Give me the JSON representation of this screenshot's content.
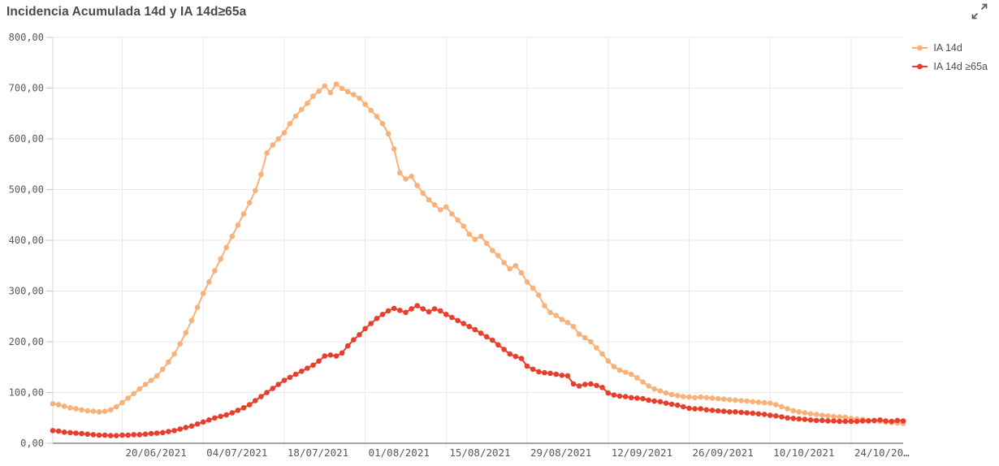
{
  "header": {
    "title": "Incidencia Acumulada 14d y IA 14d≥65a"
  },
  "icons": {
    "expand_icon": "expand-fullscreen",
    "expand_color": "#595959"
  },
  "legend": {
    "items": [
      {
        "label": "IA 14d",
        "color": "#F8B179"
      },
      {
        "label": "IA 14d ≥65a",
        "color": "#E83E2C"
      }
    ]
  },
  "chart_data": {
    "type": "line",
    "title": "Incidencia Acumulada 14d y IA 14d≥65a",
    "xlabel": "",
    "ylabel": "",
    "ylim": [
      0,
      800
    ],
    "grid": true,
    "legend_position": "top-right",
    "marker": "dot",
    "y_tick_labels": [
      "0,00",
      "100,00",
      "200,00",
      "300,00",
      "400,00",
      "500,00",
      "600,00",
      "700,00",
      "800,00"
    ],
    "x_start_date": "08/06/2021",
    "x_end_date": "02/11/2021",
    "x_tick_labels": [
      "20/06/2021",
      "04/07/2021",
      "18/07/2021",
      "01/08/2021",
      "15/08/2021",
      "29/08/2021",
      "12/09/2021",
      "26/09/2021",
      "10/10/2021",
      "24/10/20…"
    ],
    "x_tick_indices": [
      12,
      26,
      40,
      54,
      68,
      82,
      96,
      110,
      124,
      138
    ],
    "colors": {
      "gridline": "#e9e9e9",
      "axis_line": "#a6a6a6",
      "plot_border": "#d4d4d4",
      "tick": "#c4c4c4"
    },
    "series": [
      {
        "name": "IA 14d",
        "color": "#F8B179",
        "values": [
          78,
          76,
          73,
          70,
          68,
          66,
          64,
          63,
          62,
          63,
          66,
          72,
          80,
          89,
          98,
          107,
          116,
          124,
          133,
          146,
          160,
          176,
          196,
          218,
          242,
          268,
          295,
          318,
          340,
          363,
          386,
          408,
          430,
          452,
          474,
          498,
          530,
          572,
          588,
          600,
          612,
          630,
          645,
          658,
          670,
          684,
          694,
          704,
          691,
          708,
          699,
          693,
          687,
          680,
          668,
          656,
          644,
          630,
          610,
          580,
          533,
          521,
          526,
          508,
          493,
          480,
          470,
          460,
          466,
          452,
          440,
          428,
          412,
          402,
          408,
          394,
          380,
          370,
          356,
          344,
          350,
          336,
          318,
          306,
          292,
          271,
          258,
          252,
          244,
          238,
          230,
          215,
          208,
          200,
          188,
          176,
          162,
          151,
          144,
          140,
          136,
          129,
          121,
          113,
          107,
          103,
          99,
          96,
          94,
          92,
          91,
          90,
          91,
          90,
          89,
          88,
          87,
          86,
          85,
          84,
          83,
          82,
          81,
          80,
          79,
          76,
          72,
          68,
          64,
          62,
          60,
          58,
          57,
          55,
          54,
          53,
          52,
          51,
          49,
          48,
          47,
          45,
          44,
          43,
          42,
          41,
          40,
          39
        ]
      },
      {
        "name": "IA 14d ≥65a",
        "color": "#E83E2C",
        "values": [
          25,
          24,
          22,
          21,
          20,
          19,
          18,
          17,
          16,
          16,
          15,
          15,
          16,
          16,
          17,
          17,
          18,
          19,
          20,
          21,
          23,
          25,
          28,
          31,
          34,
          38,
          42,
          46,
          50,
          53,
          56,
          60,
          65,
          70,
          76,
          84,
          92,
          100,
          108,
          116,
          124,
          130,
          136,
          142,
          148,
          154,
          162,
          172,
          174,
          172,
          178,
          192,
          204,
          214,
          226,
          236,
          246,
          254,
          261,
          266,
          262,
          258,
          265,
          271,
          265,
          259,
          265,
          261,
          254,
          248,
          242,
          236,
          230,
          224,
          217,
          210,
          203,
          194,
          185,
          176,
          171,
          167,
          152,
          146,
          141,
          139,
          138,
          136,
          134,
          133,
          117,
          113,
          116,
          117,
          114,
          110,
          99,
          95,
          93,
          92,
          90,
          89,
          88,
          85,
          83,
          82,
          79,
          77,
          75,
          72,
          69,
          68,
          68,
          66,
          65,
          64,
          63,
          62,
          62,
          61,
          60,
          59,
          58,
          57,
          55,
          54,
          52,
          50,
          49,
          48,
          47,
          46,
          45,
          45,
          44,
          44,
          43,
          43,
          43,
          43,
          44,
          44,
          45,
          46,
          44,
          43,
          45,
          44
        ]
      }
    ]
  }
}
